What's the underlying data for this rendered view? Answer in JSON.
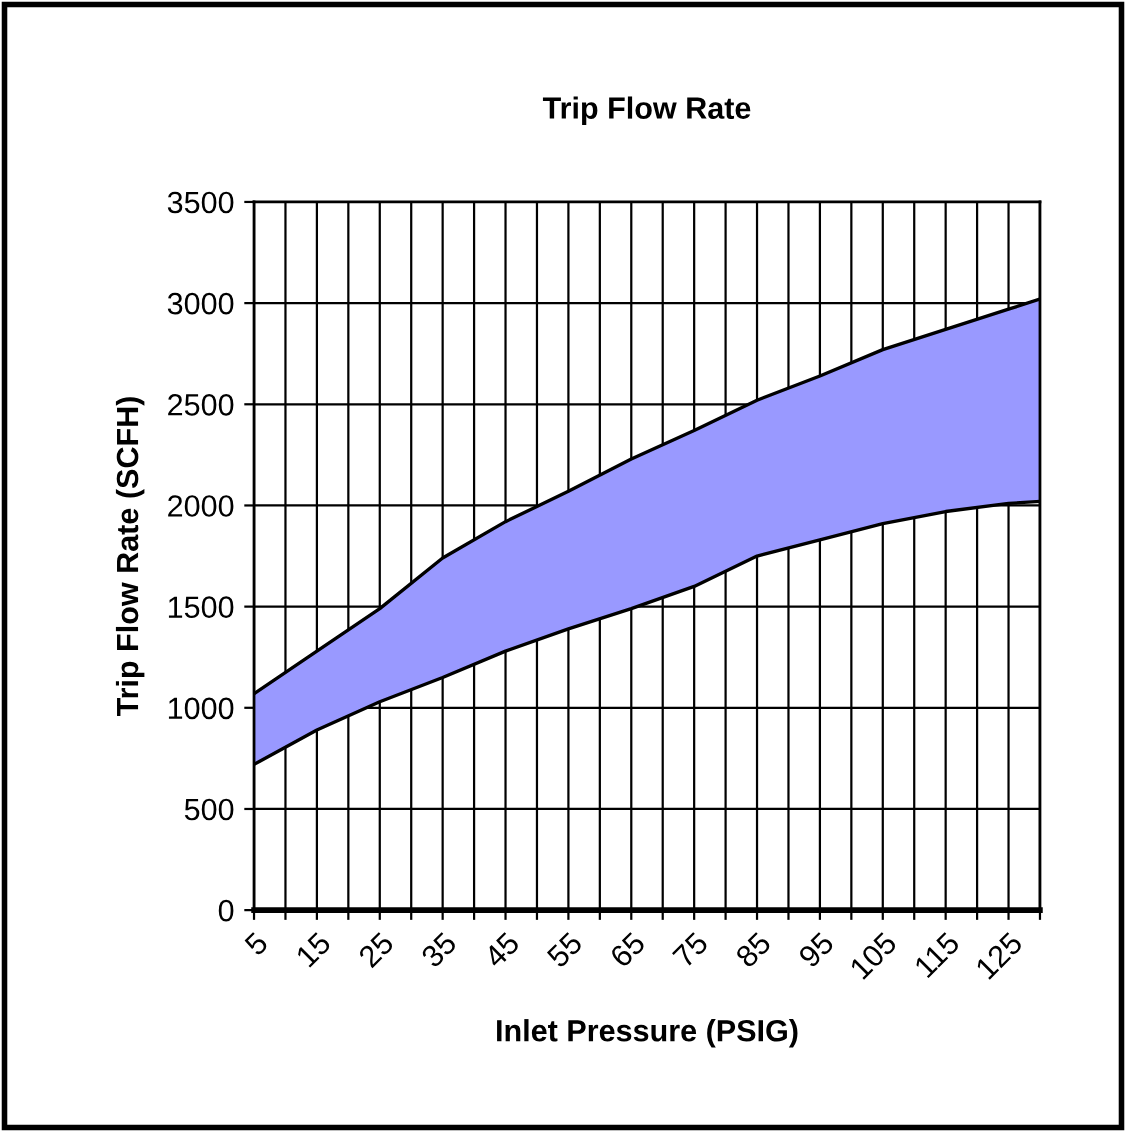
{
  "chart_data": {
    "type": "line",
    "title": "Trip Flow Rate",
    "xlabel": "Inlet Pressure (PSIG)",
    "ylabel": "Trip Flow Rate (SCFH)",
    "x": [
      5,
      15,
      25,
      35,
      45,
      55,
      65,
      75,
      85,
      95,
      105,
      115,
      125,
      130
    ],
    "series": [
      {
        "color": "#000000",
        "values": [
          1070,
          1280,
          1490,
          1740,
          1920,
          2070,
          2230,
          2370,
          2520,
          2640,
          2770,
          2870,
          2970,
          3020
        ],
        "lower": [
          720,
          890,
          1030,
          1150,
          1280,
          1390,
          1490,
          1600,
          1750,
          1830,
          1910,
          1970,
          2010,
          2020
        ],
        "upper": [
          1070,
          1280,
          1490,
          1740,
          1920,
          2070,
          2230,
          2370,
          2520,
          2640,
          2770,
          2870,
          2970,
          3020
        ]
      },
      {
        "color": "#000000",
        "values": [
          720,
          890,
          1030,
          1150,
          1280,
          1390,
          1490,
          1600,
          1750,
          1830,
          1910,
          1970,
          2010,
          2020
        ]
      }
    ],
    "xlim": [
      5,
      130
    ],
    "xticks": [
      5,
      {
        "value": 10,
        "label": null
      },
      15,
      {
        "value": 20,
        "label": null
      },
      25,
      {
        "value": 30,
        "label": null
      },
      35,
      {
        "value": 40,
        "label": null
      },
      45,
      {
        "value": 50,
        "label": null
      },
      55,
      {
        "value": 60,
        "label": null
      },
      65,
      {
        "value": 70,
        "label": null
      },
      75,
      {
        "value": 80,
        "label": null
      },
      85,
      {
        "value": 90,
        "label": null
      },
      95,
      {
        "value": 100,
        "label": null
      },
      105,
      {
        "value": 110,
        "label": null
      },
      115,
      {
        "value": 120,
        "label": null
      },
      125,
      {
        "value": 130,
        "label": null
      }
    ],
    "ylim": [
      0,
      3500
    ],
    "yticks": [
      0,
      500,
      1000,
      1500,
      2000,
      2500,
      3000,
      3500
    ],
    "grid": true
  }
}
